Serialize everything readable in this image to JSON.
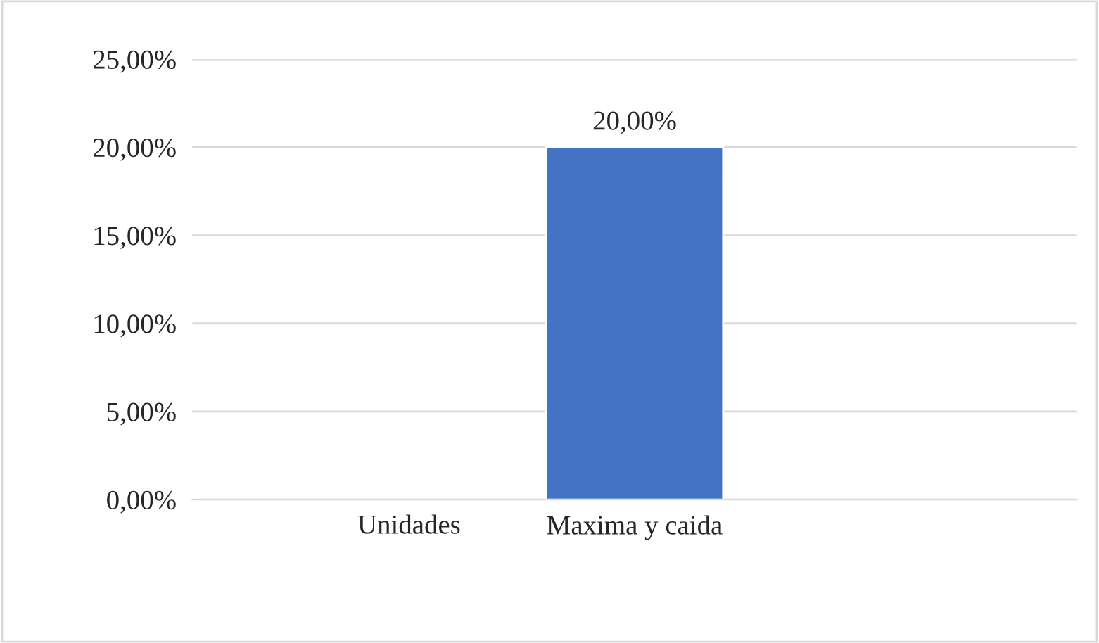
{
  "chart_data": {
    "type": "bar",
    "categories": [
      "Maxima y caida"
    ],
    "xlabel": "Unidades",
    "values": [
      20
    ],
    "color": "#4472c4",
    "value_labels": [
      "20,00%"
    ],
    "ylim": [
      0,
      25
    ],
    "yticks": [
      {
        "value": 0,
        "label": "0,00%"
      },
      {
        "value": 5,
        "label": "5,00%"
      },
      {
        "value": 10,
        "label": "10,00%"
      },
      {
        "value": 15,
        "label": "15,00%"
      },
      {
        "value": 20,
        "label": "20,00%"
      },
      {
        "value": 25,
        "label": "25,00%"
      }
    ],
    "grid": "y",
    "legend": false
  }
}
